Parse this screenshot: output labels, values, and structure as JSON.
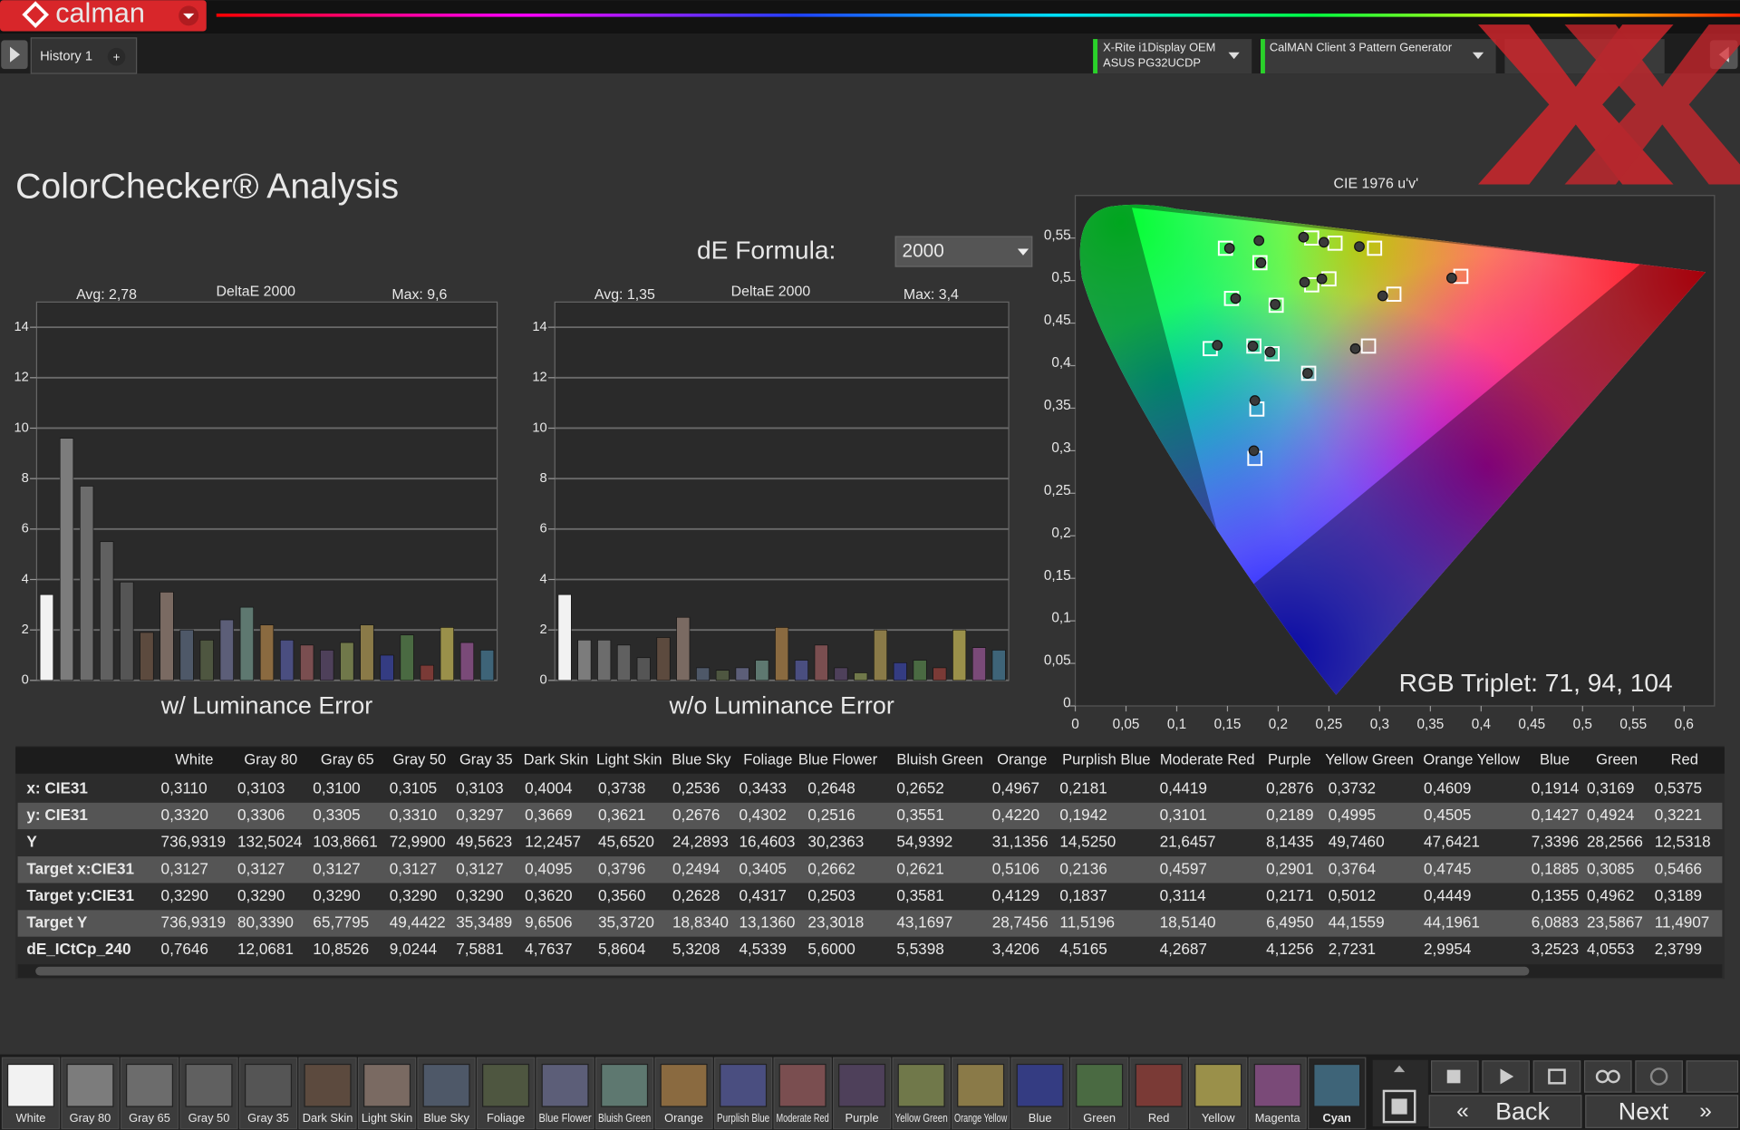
{
  "app": {
    "logo": "calman",
    "tab": "History 1",
    "tab_add": "+",
    "devices": [
      {
        "line1": "X-Rite i1Display OEM",
        "line2": "ASUS PG32UCDP"
      },
      {
        "line1": "CalMAN Client 3 Pattern Generator"
      }
    ]
  },
  "title": "ColorChecker® Analysis",
  "de_formula": {
    "label": "dE Formula:",
    "value": "2000"
  },
  "charts": [
    {
      "type": "bar",
      "title": "DeltaE 2000",
      "avg": "Avg: 2,78",
      "max": "Max: 9,6",
      "xlabel": "w/ Luminance Error",
      "ylim": [
        0,
        15
      ],
      "yticks": [
        0,
        2,
        4,
        6,
        8,
        10,
        12,
        14
      ],
      "grid": true,
      "values": [
        3.4,
        9.6,
        7.7,
        5.5,
        3.9,
        1.9,
        3.5,
        2.0,
        1.6,
        2.4,
        2.9,
        2.2,
        1.6,
        1.4,
        1.2,
        1.5,
        2.2,
        1.0,
        1.8,
        0.6,
        2.1,
        1.5,
        1.2
      ]
    },
    {
      "type": "bar",
      "title": "DeltaE 2000",
      "avg": "Avg: 1,35",
      "max": "Max: 3,4",
      "xlabel": "w/o Luminance Error",
      "ylim": [
        0,
        15
      ],
      "yticks": [
        0,
        2,
        4,
        6,
        8,
        10,
        12,
        14
      ],
      "grid": true,
      "values": [
        3.4,
        1.6,
        1.6,
        1.4,
        0.9,
        1.7,
        2.5,
        0.5,
        0.4,
        0.5,
        0.8,
        2.1,
        0.8,
        1.4,
        0.5,
        0.3,
        2.0,
        0.7,
        0.8,
        0.5,
        2.0,
        1.3,
        1.2
      ]
    },
    {
      "type": "scatter",
      "title": "CIE 1976 u'v'",
      "annotation": "RGB Triplet: 71, 94, 104",
      "grid": false,
      "xlim": [
        0,
        0.63
      ],
      "ylim": [
        0,
        0.6
      ],
      "xticks": [
        0,
        {
          "value": 0.05,
          "label": "0,05"
        },
        {
          "value": 0.1,
          "label": "0,1"
        },
        {
          "value": 0.15,
          "label": "0,15"
        },
        {
          "value": 0.2,
          "label": "0,2"
        },
        {
          "value": 0.25,
          "label": "0,25"
        },
        {
          "value": 0.3,
          "label": "0,3"
        },
        {
          "value": 0.35,
          "label": "0,35"
        },
        {
          "value": 0.4,
          "label": "0,4"
        },
        {
          "value": 0.45,
          "label": "0,45"
        },
        {
          "value": 0.5,
          "label": "0,5"
        },
        {
          "value": 0.55,
          "label": "0,55"
        },
        {
          "value": 0.6,
          "label": "0,6"
        }
      ],
      "yticks": [
        0,
        {
          "value": 0.05,
          "label": "0,05"
        },
        {
          "value": 0.1,
          "label": "0,1"
        },
        {
          "value": 0.15,
          "label": "0,15"
        },
        {
          "value": 0.2,
          "label": "0,2"
        },
        {
          "value": 0.25,
          "label": "0,25"
        },
        {
          "value": 0.3,
          "label": "0,3"
        },
        {
          "value": 0.35,
          "label": "0,35"
        },
        {
          "value": 0.4,
          "label": "0,4"
        },
        {
          "value": 0.45,
          "label": "0,45"
        },
        {
          "value": 0.5,
          "label": "0,5"
        },
        {
          "value": 0.55,
          "label": "0,55"
        }
      ],
      "target": {
        "u": [
          0.148,
          0.182,
          0.233,
          0.256,
          0.295,
          0.154,
          0.198,
          0.233,
          0.25,
          0.314,
          0.38,
          0.133,
          0.176,
          0.194,
          0.289,
          0.23,
          0.179,
          0.177
        ],
        "v": [
          0.538,
          0.521,
          0.55,
          0.544,
          0.538,
          0.479,
          0.471,
          0.495,
          0.502,
          0.484,
          0.505,
          0.42,
          0.423,
          0.414,
          0.423,
          0.391,
          0.349,
          0.291
        ]
      },
      "measured": {
        "u": [
          0.152,
          0.181,
          0.183,
          0.225,
          0.245,
          0.28,
          0.158,
          0.197,
          0.226,
          0.243,
          0.303,
          0.371,
          0.14,
          0.175,
          0.192,
          0.276,
          0.229,
          0.177,
          0.176
        ],
        "v": [
          0.538,
          0.547,
          0.521,
          0.551,
          0.545,
          0.54,
          0.479,
          0.472,
          0.498,
          0.502,
          0.482,
          0.503,
          0.424,
          0.423,
          0.416,
          0.42,
          0.391,
          0.359,
          0.3
        ]
      }
    }
  ],
  "table": {
    "columns": [
      "White",
      "Gray 80",
      "Gray 65",
      "Gray 50",
      "Gray 35",
      "Dark Skin",
      "Light Skin",
      "Blue Sky",
      "Foliage",
      "Blue Flower",
      "Bluish Green",
      "Orange",
      "Purplish Blue",
      "Moderate Red",
      "Purple",
      "Yellow Green",
      "Orange Yellow",
      "Blue",
      "Green",
      "Red"
    ],
    "rows": [
      {
        "label": "x: CIE31",
        "cells": [
          "0,3110",
          "0,3103",
          "0,3100",
          "0,3105",
          "0,3103",
          "0,4004",
          "0,3738",
          "0,2536",
          "0,3433",
          "0,2648",
          "0,2652",
          "0,4967",
          "0,2181",
          "0,4419",
          "0,2876",
          "0,3732",
          "0,4609",
          "0,1914",
          "0,3169",
          "0,5375"
        ]
      },
      {
        "label": "y: CIE31",
        "cells": [
          "0,3320",
          "0,3306",
          "0,3305",
          "0,3310",
          "0,3297",
          "0,3669",
          "0,3621",
          "0,2676",
          "0,4302",
          "0,2516",
          "0,3551",
          "0,4220",
          "0,1942",
          "0,3101",
          "0,2189",
          "0,4995",
          "0,4505",
          "0,1427",
          "0,4924",
          "0,3221"
        ]
      },
      {
        "label": "Y",
        "cells": [
          "736,9319",
          "132,5024",
          "103,8661",
          "72,9900",
          "49,5623",
          "12,2457",
          "45,6520",
          "24,2893",
          "16,4603",
          "30,2363",
          "54,9392",
          "31,1356",
          "14,5250",
          "21,6457",
          "8,1435",
          "49,7460",
          "47,6421",
          "7,3396",
          "28,2566",
          "12,5318"
        ]
      },
      {
        "label": "Target x:CIE31",
        "cells": [
          "0,3127",
          "0,3127",
          "0,3127",
          "0,3127",
          "0,3127",
          "0,4095",
          "0,3796",
          "0,2494",
          "0,3405",
          "0,2662",
          "0,2621",
          "0,5106",
          "0,2136",
          "0,4597",
          "0,2901",
          "0,3764",
          "0,4745",
          "0,1885",
          "0,3085",
          "0,5466"
        ]
      },
      {
        "label": "Target y:CIE31",
        "cells": [
          "0,3290",
          "0,3290",
          "0,3290",
          "0,3290",
          "0,3290",
          "0,3620",
          "0,3560",
          "0,2628",
          "0,4317",
          "0,2503",
          "0,3581",
          "0,4129",
          "0,1837",
          "0,3114",
          "0,2171",
          "0,5012",
          "0,4449",
          "0,1355",
          "0,4962",
          "0,3189"
        ]
      },
      {
        "label": "Target Y",
        "cells": [
          "736,9319",
          "80,3390",
          "65,7795",
          "49,4422",
          "35,3489",
          "9,6506",
          "35,3720",
          "18,8340",
          "13,1360",
          "23,3018",
          "43,1697",
          "28,7456",
          "11,5196",
          "18,5140",
          "6,4950",
          "44,1559",
          "44,1961",
          "6,0883",
          "23,5867",
          "11,4907"
        ]
      },
      {
        "label": "dE_ICtCp_240",
        "cells": [
          "0,7646",
          "12,0681",
          "10,8526",
          "9,0244",
          "7,5881",
          "4,7637",
          "5,8604",
          "5,3208",
          "4,5339",
          "5,6000",
          "5,5398",
          "3,4206",
          "4,5165",
          "4,2687",
          "4,1256",
          "2,7231",
          "2,9954",
          "3,2523",
          "4,0553",
          "2,3799"
        ]
      }
    ]
  },
  "patches": [
    {
      "label": "White",
      "color": "#f2f2f2"
    },
    {
      "label": "Gray 80",
      "color": "#7c7c7c"
    },
    {
      "label": "Gray 65",
      "color": "#6c6c6c"
    },
    {
      "label": "Gray 50",
      "color": "#606060"
    },
    {
      "label": "Gray 35",
      "color": "#555555"
    },
    {
      "label": "Dark Skin",
      "color": "#5c4a3e"
    },
    {
      "label": "Light Skin",
      "color": "#7a6a62"
    },
    {
      "label": "Blue Sky",
      "color": "#4e5868"
    },
    {
      "label": "Foliage",
      "color": "#4e5640"
    },
    {
      "label": "Blue Flower",
      "color": "#5c5e78"
    },
    {
      "label": "Bluish Green",
      "color": "#5e7870"
    },
    {
      "label": "Orange",
      "color": "#8a6a40"
    },
    {
      "label": "Purplish Blue",
      "color": "#4a4e80"
    },
    {
      "label": "Moderate Red",
      "color": "#7a4e50"
    },
    {
      "label": "Purple",
      "color": "#4e405a"
    },
    {
      "label": "Yellow Green",
      "color": "#70784a"
    },
    {
      "label": "Orange Yellow",
      "color": "#8a7a48"
    },
    {
      "label": "Blue",
      "color": "#343c82"
    },
    {
      "label": "Green",
      "color": "#4a6a42"
    },
    {
      "label": "Red",
      "color": "#7a3a36"
    },
    {
      "label": "Yellow",
      "color": "#9a904a"
    },
    {
      "label": "Magenta",
      "color": "#7a4a78"
    },
    {
      "label": "Cyan",
      "color": "#3e6478"
    }
  ],
  "selected_patch": "Cyan",
  "nav": {
    "back": "Back",
    "next": "Next"
  }
}
